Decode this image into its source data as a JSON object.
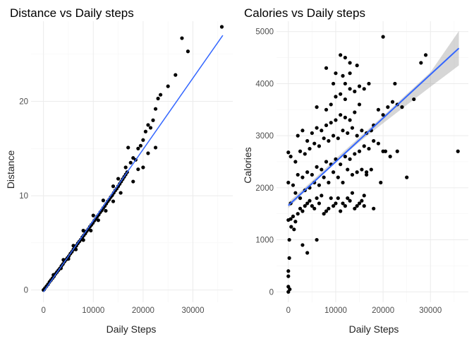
{
  "chart_data": [
    {
      "type": "scatter",
      "title": "Distance vs Daily steps",
      "xlabel": "Daily Steps",
      "ylabel": "Distance",
      "xlim": [
        -2500,
        38000
      ],
      "ylim": [
        -1.3,
        28.5
      ],
      "x_ticks": [
        0,
        10000,
        20000,
        30000
      ],
      "y_ticks": [
        0,
        10,
        20
      ],
      "x_tick_labels": [
        "0",
        "10000",
        "20000",
        "30000"
      ],
      "y_tick_labels": [
        "0",
        "10",
        "20"
      ],
      "grid": true,
      "point_color": "#000000",
      "fit": {
        "method": "lm",
        "x": [
          0,
          36000
        ],
        "y": [
          -0.2,
          27.0
        ],
        "color": "#3366ff",
        "se_band": false
      },
      "points": [
        [
          0,
          0
        ],
        [
          120,
          0.05
        ],
        [
          300,
          0.2
        ],
        [
          600,
          0.4
        ],
        [
          900,
          0.6
        ],
        [
          1200,
          0.85
        ],
        [
          1500,
          1.05
        ],
        [
          1800,
          1.25
        ],
        [
          2100,
          1.45
        ],
        [
          2400,
          1.7
        ],
        [
          2700,
          1.9
        ],
        [
          3000,
          2.1
        ],
        [
          3300,
          2.3
        ],
        [
          3600,
          2.55
        ],
        [
          3900,
          2.75
        ],
        [
          4200,
          3.0
        ],
        [
          4500,
          3.2
        ],
        [
          4800,
          3.4
        ],
        [
          5100,
          3.6
        ],
        [
          5400,
          3.85
        ],
        [
          5700,
          4.05
        ],
        [
          6000,
          4.3
        ],
        [
          6300,
          4.5
        ],
        [
          6600,
          4.7
        ],
        [
          6900,
          4.95
        ],
        [
          7200,
          5.15
        ],
        [
          7500,
          5.35
        ],
        [
          7800,
          5.6
        ],
        [
          8100,
          5.8
        ],
        [
          8400,
          6.0
        ],
        [
          8700,
          6.25
        ],
        [
          9000,
          6.45
        ],
        [
          9300,
          6.7
        ],
        [
          9600,
          6.9
        ],
        [
          9900,
          7.1
        ],
        [
          10200,
          7.35
        ],
        [
          10500,
          7.55
        ],
        [
          10800,
          7.8
        ],
        [
          11100,
          8.0
        ],
        [
          11400,
          8.25
        ],
        [
          11700,
          8.45
        ],
        [
          12000,
          8.7
        ],
        [
          12300,
          8.9
        ],
        [
          12600,
          9.15
        ],
        [
          12900,
          9.4
        ],
        [
          13200,
          9.6
        ],
        [
          13500,
          9.85
        ],
        [
          13800,
          10.05
        ],
        [
          14100,
          10.3
        ],
        [
          14400,
          10.55
        ],
        [
          14700,
          10.75
        ],
        [
          15000,
          11.0
        ],
        [
          15300,
          11.25
        ],
        [
          15600,
          11.5
        ],
        [
          15900,
          11.75
        ],
        [
          16200,
          12.0
        ],
        [
          16500,
          12.25
        ],
        [
          16800,
          12.5
        ],
        [
          2000,
          1.6
        ],
        [
          3500,
          2.3
        ],
        [
          5000,
          3.3
        ],
        [
          6500,
          4.3
        ],
        [
          8000,
          5.3
        ],
        [
          9500,
          6.3
        ],
        [
          11000,
          7.4
        ],
        [
          12500,
          8.4
        ],
        [
          14000,
          9.4
        ],
        [
          15500,
          10.3
        ],
        [
          4000,
          3.2
        ],
        [
          6000,
          4.7
        ],
        [
          8000,
          6.3
        ],
        [
          10000,
          7.9
        ],
        [
          12000,
          9.5
        ],
        [
          14000,
          11.0
        ],
        [
          15000,
          11.8
        ],
        [
          16500,
          13.0
        ],
        [
          17500,
          13.5
        ],
        [
          18000,
          14.0
        ],
        [
          18500,
          13.8
        ],
        [
          19000,
          15.0
        ],
        [
          19500,
          15.3
        ],
        [
          20000,
          15.9
        ],
        [
          20500,
          16.8
        ],
        [
          21000,
          17.5
        ],
        [
          21500,
          17.2
        ],
        [
          22000,
          18.0
        ],
        [
          22500,
          19.2
        ],
        [
          23000,
          20.3
        ],
        [
          23500,
          20.7
        ],
        [
          17000,
          15.1
        ],
        [
          18000,
          11.5
        ],
        [
          19000,
          12.8
        ],
        [
          21000,
          14.5
        ],
        [
          22500,
          15.1
        ],
        [
          20000,
          13.0
        ],
        [
          25000,
          21.6
        ],
        [
          26500,
          22.8
        ],
        [
          29000,
          25.3
        ],
        [
          27800,
          26.7
        ],
        [
          35800,
          27.9
        ]
      ]
    },
    {
      "type": "scatter",
      "title": "Calories vs Daily steps",
      "xlabel": "Daily Steps",
      "ylabel": "Calories",
      "xlim": [
        -2500,
        38000
      ],
      "ylim": [
        -200,
        5200
      ],
      "x_ticks": [
        0,
        10000,
        20000,
        30000
      ],
      "y_ticks": [
        0,
        1000,
        2000,
        3000,
        4000,
        5000
      ],
      "x_tick_labels": [
        "0",
        "10000",
        "20000",
        "30000"
      ],
      "y_tick_labels": [
        "0",
        "1000",
        "2000",
        "3000",
        "4000",
        "5000"
      ],
      "grid": true,
      "point_color": "#000000",
      "fit": {
        "method": "lm",
        "x": [
          0,
          36000
        ],
        "y": [
          1660,
          4680
        ],
        "color": "#3366ff",
        "se_band": true,
        "band_color": "#999999",
        "band_x": [
          0,
          5000,
          10000,
          15000,
          20000,
          25000,
          30000,
          36000
        ],
        "band_lower": [
          1610,
          2060,
          2490,
          2880,
          3240,
          3590,
          3940,
          4350
        ],
        "band_upper": [
          1720,
          2130,
          2560,
          2970,
          3380,
          3800,
          4220,
          5010
        ]
      },
      "points": [
        [
          0,
          0
        ],
        [
          0,
          100
        ],
        [
          0,
          300
        ],
        [
          0,
          400
        ],
        [
          200,
          650
        ],
        [
          300,
          50
        ],
        [
          200,
          1000
        ],
        [
          600,
          1250
        ],
        [
          1200,
          1200
        ],
        [
          3000,
          900
        ],
        [
          4000,
          750
        ],
        [
          6000,
          1000
        ],
        [
          0,
          1380
        ],
        [
          500,
          1400
        ],
        [
          1000,
          1450
        ],
        [
          1500,
          1350
        ],
        [
          2000,
          1500
        ],
        [
          2500,
          1600
        ],
        [
          3000,
          1550
        ],
        [
          3500,
          1650
        ],
        [
          4000,
          1700
        ],
        [
          4500,
          1750
        ],
        [
          5000,
          1650
        ],
        [
          5500,
          1600
        ],
        [
          6000,
          1800
        ],
        [
          6500,
          1700
        ],
        [
          7000,
          1850
        ],
        [
          7500,
          1500
        ],
        [
          8000,
          1550
        ],
        [
          8500,
          1600
        ],
        [
          9000,
          1800
        ],
        [
          9500,
          1650
        ],
        [
          10000,
          1700
        ],
        [
          10500,
          1800
        ],
        [
          11000,
          1550
        ],
        [
          11500,
          1700
        ],
        [
          12000,
          1650
        ],
        [
          12500,
          1800
        ],
        [
          13000,
          1750
        ],
        [
          13500,
          1900
        ],
        [
          14000,
          1600
        ],
        [
          14500,
          1650
        ],
        [
          15000,
          1700
        ],
        [
          15500,
          1750
        ],
        [
          16000,
          1650
        ],
        [
          500,
          1700
        ],
        [
          1500,
          1900
        ],
        [
          2500,
          1800
        ],
        [
          3500,
          1950
        ],
        [
          4500,
          2000
        ],
        [
          5500,
          2100
        ],
        [
          6500,
          2050
        ],
        [
          7500,
          2200
        ],
        [
          8500,
          2100
        ],
        [
          9500,
          2300
        ],
        [
          10500,
          2200
        ],
        [
          11500,
          2100
        ],
        [
          12500,
          2350
        ],
        [
          13500,
          2250
        ],
        [
          14500,
          2300
        ],
        [
          15500,
          2350
        ],
        [
          16500,
          2250
        ],
        [
          0,
          2100
        ],
        [
          1000,
          2050
        ],
        [
          2000,
          2250
        ],
        [
          3000,
          2200
        ],
        [
          4000,
          2300
        ],
        [
          5000,
          2250
        ],
        [
          6000,
          2400
        ],
        [
          7000,
          2350
        ],
        [
          8000,
          2500
        ],
        [
          9000,
          2450
        ],
        [
          10000,
          2550
        ],
        [
          11000,
          2450
        ],
        [
          12000,
          2600
        ],
        [
          13000,
          2550
        ],
        [
          14000,
          2650
        ],
        [
          15000,
          2700
        ],
        [
          16000,
          2800
        ],
        [
          17000,
          2750
        ],
        [
          18000,
          2900
        ],
        [
          19000,
          2850
        ],
        [
          500,
          2600
        ],
        [
          1500,
          2500
        ],
        [
          2500,
          2700
        ],
        [
          3500,
          2650
        ],
        [
          4500,
          2750
        ],
        [
          5500,
          2850
        ],
        [
          6500,
          2800
        ],
        [
          7500,
          2950
        ],
        [
          8500,
          2900
        ],
        [
          9500,
          3000
        ],
        [
          10500,
          2950
        ],
        [
          11500,
          3100
        ],
        [
          12500,
          3050
        ],
        [
          13500,
          3150
        ],
        [
          14500,
          3000
        ],
        [
          15500,
          3100
        ],
        [
          16500,
          3050
        ],
        [
          17500,
          3100
        ],
        [
          0,
          2680
        ],
        [
          2000,
          3000
        ],
        [
          3000,
          3100
        ],
        [
          4000,
          2900
        ],
        [
          5000,
          3050
        ],
        [
          6000,
          3150
        ],
        [
          7000,
          3100
        ],
        [
          8000,
          3200
        ],
        [
          9000,
          3250
        ],
        [
          10000,
          3300
        ],
        [
          11000,
          3400
        ],
        [
          12000,
          3350
        ],
        [
          13000,
          3300
        ],
        [
          14000,
          3450
        ],
        [
          6000,
          3550
        ],
        [
          8000,
          3500
        ],
        [
          9000,
          3600
        ],
        [
          10000,
          3750
        ],
        [
          11000,
          3800
        ],
        [
          12000,
          3700
        ],
        [
          13000,
          3900
        ],
        [
          14000,
          3850
        ],
        [
          15000,
          3600
        ],
        [
          9500,
          4000
        ],
        [
          11500,
          4150
        ],
        [
          12000,
          4000
        ],
        [
          13000,
          4200
        ],
        [
          14500,
          4350
        ],
        [
          11000,
          4550
        ],
        [
          12000,
          4500
        ],
        [
          13000,
          4400
        ],
        [
          15000,
          3950
        ],
        [
          16000,
          3900
        ],
        [
          17000,
          4000
        ],
        [
          8000,
          4300
        ],
        [
          10000,
          4200
        ],
        [
          18000,
          3200
        ],
        [
          19000,
          3500
        ],
        [
          20000,
          3400
        ],
        [
          21000,
          3550
        ],
        [
          22000,
          3650
        ],
        [
          23000,
          3600
        ],
        [
          22500,
          4000
        ],
        [
          20000,
          4900
        ],
        [
          24000,
          3550
        ],
        [
          26500,
          3700
        ],
        [
          29000,
          4550
        ],
        [
          28000,
          4400
        ],
        [
          25000,
          2200
        ],
        [
          23000,
          2700
        ],
        [
          35800,
          2700
        ],
        [
          20500,
          2700
        ],
        [
          19500,
          2100
        ],
        [
          16500,
          2300
        ],
        [
          17500,
          2350
        ],
        [
          18000,
          1600
        ],
        [
          16000,
          1850
        ],
        [
          20000,
          2700
        ],
        [
          21500,
          2600
        ]
      ]
    }
  ]
}
